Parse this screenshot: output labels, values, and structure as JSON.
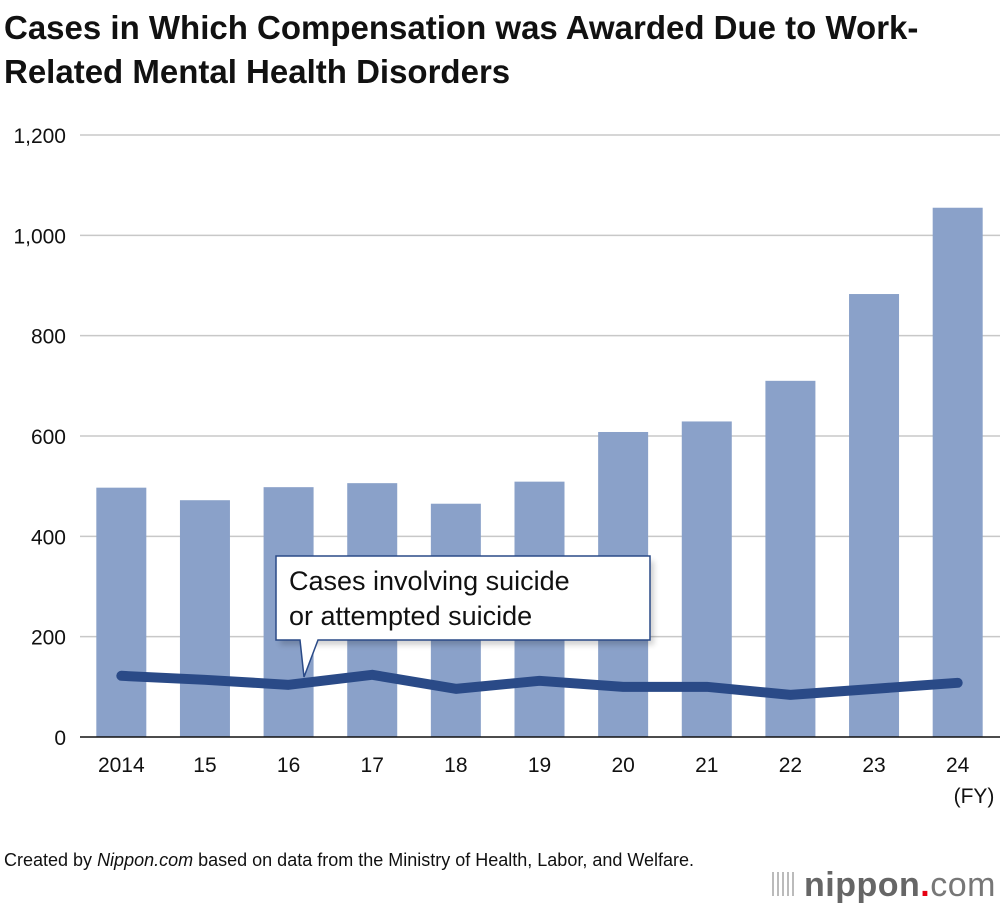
{
  "chart_data": {
    "type": "bar",
    "title": "Cases in Which Compensation was Awarded Due to Work-Related Mental Health Disorders",
    "categories": [
      "2014",
      "15",
      "16",
      "17",
      "18",
      "19",
      "20",
      "21",
      "22",
      "23",
      "24"
    ],
    "x_unit_label": "(FY)",
    "ylim": [
      0,
      1200
    ],
    "yticks": [
      0,
      200,
      400,
      600,
      800,
      1000,
      1200
    ],
    "ytick_labels": [
      "0",
      "200",
      "400",
      "600",
      "800",
      "1,000",
      "1,200"
    ],
    "grid": true,
    "series": [
      {
        "type": "bar",
        "values": [
          497,
          472,
          498,
          506,
          465,
          509,
          608,
          629,
          710,
          883,
          1055
        ],
        "color": "#8aa1c9"
      },
      {
        "type": "line",
        "name": "Cases involving suicide or attempted suicide",
        "values": [
          122,
          114,
          104,
          124,
          96,
          112,
          100,
          100,
          84,
          96,
          108
        ],
        "color": "#2a4a87"
      }
    ],
    "annotation": [
      "Cases involving suicide",
      "or attempted suicide"
    ]
  },
  "footer": {
    "prefix": "Created by ",
    "source_name": "Nippon.com",
    "suffix": " based on data from the Ministry of Health, Labor, and Welfare."
  },
  "logo": {
    "text": "nippon.com"
  }
}
